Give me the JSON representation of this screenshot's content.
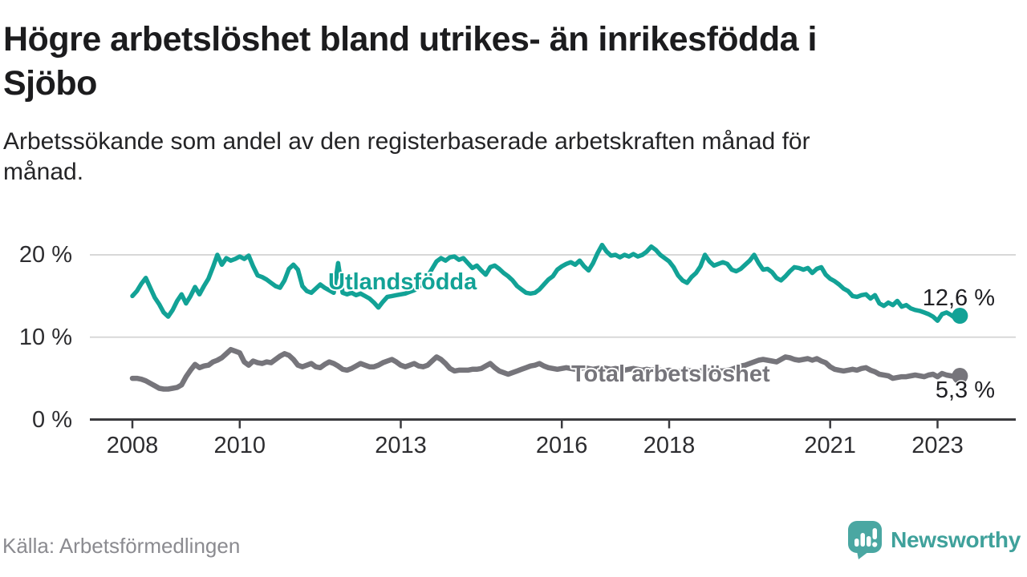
{
  "header": {
    "title_lines": [
      "Högre arbetslöshet bland utrikes- än inrikesfödda i",
      "Sjöbo"
    ],
    "subtitle_lines": [
      "Arbetssökande som andel av den registerbaserade arbetskraften månad för",
      "månad."
    ]
  },
  "footer": {
    "source": "Källa: Arbetsförmedlingen",
    "brand_name": "Newsworthy",
    "brand_text_color": "#3fa19b",
    "brand_icon_color": "#4aa7a2"
  },
  "chart_data": {
    "type": "line",
    "title": "Högre arbetslöshet bland utrikes- än inrikesfödda i Sjöbo",
    "subtitle": "Arbetssökande som andel av den registerbaserade arbetskraften månad för månad.",
    "unit": "%",
    "frequency": "monthly",
    "start": "2008-01",
    "end": "2023-06",
    "ylim": [
      0,
      22
    ],
    "grid": "horizontal",
    "legend": "inline-labels",
    "x_tick_years": [
      2008,
      2010,
      2013,
      2016,
      2018,
      2021,
      2023
    ],
    "y_ticks": [
      {
        "value": 20,
        "label": "20 %"
      },
      {
        "value": 10,
        "label": "10 %"
      },
      {
        "value": 0,
        "label": "0 %"
      }
    ],
    "series": [
      {
        "name": "Utlandsfödda",
        "color": "#12a296",
        "end_label": "12,6 %",
        "end_value": 12.6,
        "values": [
          15.0,
          15.6,
          16.5,
          17.2,
          16.0,
          14.8,
          14.0,
          13.0,
          12.5,
          13.3,
          14.4,
          15.2,
          14.1,
          15.0,
          16.1,
          15.2,
          16.2,
          17.1,
          18.5,
          20.0,
          18.8,
          19.6,
          19.3,
          19.5,
          19.8,
          19.5,
          19.9,
          18.6,
          17.5,
          17.3,
          17.0,
          16.6,
          16.2,
          16.0,
          16.9,
          18.3,
          18.8,
          18.2,
          16.2,
          15.6,
          15.4,
          15.9,
          16.4,
          16.0,
          15.7,
          15.4,
          19.0,
          15.4,
          15.2,
          15.4,
          15.1,
          15.3,
          15.0,
          14.7,
          14.2,
          13.6,
          14.3,
          14.9,
          15.0,
          15.1,
          15.2,
          15.3,
          15.5,
          15.7,
          16.1,
          16.7,
          17.4,
          18.3,
          19.2,
          19.6,
          19.3,
          19.7,
          19.8,
          19.4,
          19.6,
          19.0,
          18.4,
          18.7,
          18.1,
          17.6,
          18.5,
          18.7,
          18.3,
          17.8,
          17.4,
          16.9,
          16.2,
          15.8,
          15.4,
          15.3,
          15.4,
          15.8,
          16.4,
          17.0,
          17.4,
          18.2,
          18.6,
          18.9,
          19.1,
          18.8,
          19.3,
          18.6,
          18.1,
          19.0,
          20.2,
          21.2,
          20.4,
          19.9,
          20.0,
          19.7,
          20.0,
          19.8,
          20.1,
          19.8,
          20.0,
          20.4,
          21.0,
          20.6,
          20.0,
          19.6,
          19.2,
          18.5,
          17.5,
          16.9,
          16.6,
          17.3,
          17.8,
          18.6,
          20.0,
          19.2,
          18.7,
          18.9,
          19.1,
          18.9,
          18.2,
          18.0,
          18.3,
          18.8,
          19.3,
          20.0,
          19.0,
          18.2,
          18.3,
          17.9,
          17.2,
          16.9,
          17.4,
          18.0,
          18.5,
          18.4,
          18.2,
          18.4,
          17.8,
          18.3,
          18.5,
          17.6,
          17.1,
          16.8,
          16.4,
          15.9,
          15.6,
          15.0,
          14.9,
          15.1,
          15.2,
          14.7,
          15.1,
          14.1,
          13.8,
          14.2,
          13.9,
          14.4,
          13.7,
          13.9,
          13.5,
          13.3,
          13.2,
          13.0,
          12.8,
          12.5,
          12.0,
          12.8,
          13.0,
          12.7,
          12.3,
          12.6
        ]
      },
      {
        "name": "Total arbetslöshet",
        "color": "#76757b",
        "end_label": "5,3 %",
        "end_value": 5.3,
        "values": [
          5.0,
          5.0,
          4.9,
          4.7,
          4.4,
          4.1,
          3.8,
          3.7,
          3.7,
          3.8,
          3.9,
          4.2,
          5.2,
          6.0,
          6.7,
          6.3,
          6.5,
          6.6,
          7.0,
          7.2,
          7.5,
          8.0,
          8.5,
          8.3,
          8.1,
          7.0,
          6.6,
          7.1,
          6.9,
          6.8,
          7.0,
          6.9,
          7.3,
          7.7,
          8.0,
          7.8,
          7.3,
          6.6,
          6.4,
          6.6,
          6.8,
          6.4,
          6.3,
          6.7,
          7.0,
          6.8,
          6.5,
          6.1,
          6.0,
          6.2,
          6.5,
          6.8,
          6.6,
          6.4,
          6.4,
          6.6,
          6.9,
          7.1,
          7.3,
          7.0,
          6.6,
          6.4,
          6.6,
          6.8,
          6.5,
          6.4,
          6.6,
          7.1,
          7.6,
          7.3,
          6.8,
          6.2,
          5.9,
          6.0,
          6.0,
          6.0,
          6.1,
          6.1,
          6.2,
          6.5,
          6.8,
          6.3,
          5.9,
          5.7,
          5.5,
          5.7,
          5.9,
          6.1,
          6.3,
          6.5,
          6.6,
          6.8,
          6.5,
          6.3,
          6.2,
          6.1,
          6.2,
          6.3,
          6.2,
          6.1,
          6.2,
          6.3,
          6.2,
          6.1,
          6.2,
          6.3,
          6.2,
          6.1,
          6.2,
          6.1,
          6.0,
          6.1,
          6.2,
          6.1,
          6.0,
          6.1,
          6.0,
          6.1,
          6.0,
          5.9,
          6.0,
          5.9,
          5.8,
          5.9,
          6.0,
          5.9,
          5.8,
          5.9,
          6.0,
          5.9,
          5.8,
          5.9,
          5.9,
          6.0,
          6.1,
          6.3,
          6.5,
          6.6,
          6.8,
          7.0,
          7.2,
          7.3,
          7.2,
          7.1,
          7.0,
          7.3,
          7.6,
          7.5,
          7.3,
          7.2,
          7.3,
          7.4,
          7.2,
          7.4,
          7.1,
          6.9,
          6.4,
          6.1,
          6.0,
          5.9,
          6.0,
          6.1,
          6.0,
          6.2,
          6.3,
          6.0,
          5.8,
          5.5,
          5.4,
          5.3,
          5.0,
          5.1,
          5.2,
          5.2,
          5.3,
          5.4,
          5.3,
          5.2,
          5.4,
          5.5,
          5.2,
          5.6,
          5.4,
          5.3,
          5.2,
          5.3
        ]
      }
    ]
  }
}
